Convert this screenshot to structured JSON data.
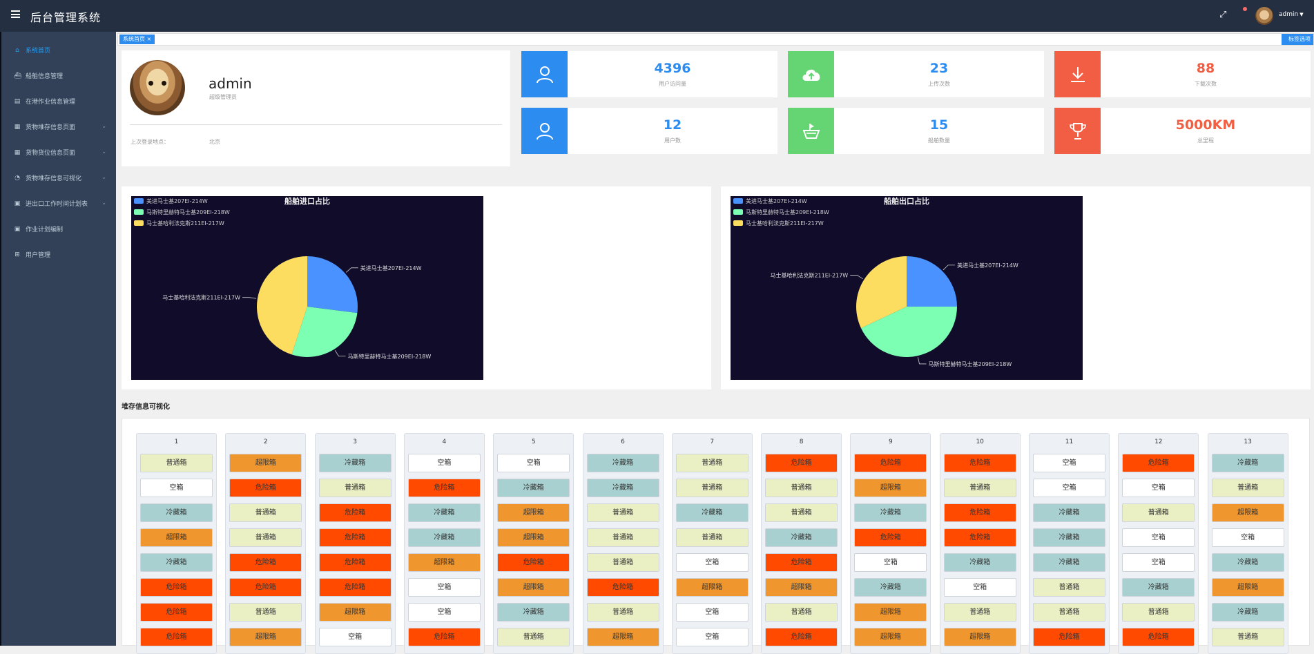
{
  "header": {
    "title": "后台管理系统",
    "user": "admin"
  },
  "sidebar": {
    "items": [
      {
        "label": "系统首页",
        "icon": "home-icon"
      },
      {
        "label": "船舶信息管理",
        "icon": "ship-icon"
      },
      {
        "label": "在港作业信息管理",
        "icon": "document-icon"
      },
      {
        "label": "货物堆存信息页面",
        "icon": "grid-icon"
      },
      {
        "label": "货物货位信息页面",
        "icon": "grid-icon"
      },
      {
        "label": "货物堆存信息可视化",
        "icon": "pie-icon"
      },
      {
        "label": "进出口工作时间计划表",
        "icon": "calendar-icon"
      },
      {
        "label": "作业计划编制",
        "icon": "calendar-icon"
      },
      {
        "label": "用户管理",
        "icon": "users-icon"
      }
    ]
  },
  "tags": {
    "active": "系统首页",
    "close": "×",
    "options": "标签选项"
  },
  "user_card": {
    "name": "admin",
    "role": "超级管理员",
    "location_label": "上次登录地点：",
    "location": "北京"
  },
  "stats": [
    {
      "value": "4396",
      "label": "用户访问量",
      "color": "#2d8cf0",
      "icon": "user-icon"
    },
    {
      "value": "23",
      "label": "上传次数",
      "color": "#64d572",
      "icon": "cloud-upload-icon"
    },
    {
      "value": "88",
      "label": "下载次数",
      "color": "#f25e43",
      "icon": "download-icon"
    },
    {
      "value": "12",
      "label": "用户数",
      "color": "#2d8cf0",
      "icon": "user-icon"
    },
    {
      "value": "15",
      "label": "船舶数量",
      "color": "#64d572",
      "icon": "ship-icon"
    },
    {
      "value": "5000KM",
      "label": "总里程",
      "color": "#f25e43",
      "icon": "trophy-icon"
    }
  ],
  "chart_data": [
    {
      "type": "pie",
      "title": "船舶进口占比",
      "labels": [
        "美进马士基207EI-214W",
        "马斯特里赫特马士基209EI-218W",
        "马士基哈利法克斯211EI-217W"
      ],
      "values": [
        27,
        28,
        45
      ],
      "colors": [
        "#4992ff",
        "#7cffb2",
        "#fddd60"
      ]
    },
    {
      "type": "pie",
      "title": "船舶出口占比",
      "labels": [
        "美进马士基207EI-214W",
        "马斯特里赫特马士基209EI-218W",
        "马士基哈利法克斯211EI-217W"
      ],
      "values": [
        25,
        43,
        32
      ],
      "colors": [
        "#4992ff",
        "#7cffb2",
        "#fddd60"
      ]
    }
  ],
  "stock": {
    "title": "堆存信息可视化",
    "types": {
      "普通箱": "#eaf0c4",
      "超限箱": "#f0962e",
      "冷藏箱": "#a8d0d0",
      "空箱": "#ffffff",
      "危险箱": "#ff4a00"
    },
    "columns": [
      {
        "num": "1",
        "boxes": [
          "普通箱",
          "空箱",
          "冷藏箱",
          "超限箱",
          "冷藏箱",
          "危险箱",
          "危险箱",
          "危险箱"
        ]
      },
      {
        "num": "2",
        "boxes": [
          "超限箱",
          "危险箱",
          "普通箱",
          "普通箱",
          "危险箱",
          "危险箱",
          "普通箱",
          "超限箱"
        ]
      },
      {
        "num": "3",
        "boxes": [
          "冷藏箱",
          "普通箱",
          "危险箱",
          "危险箱",
          "危险箱",
          "危险箱",
          "超限箱",
          "空箱"
        ]
      },
      {
        "num": "4",
        "boxes": [
          "空箱",
          "危险箱",
          "冷藏箱",
          "冷藏箱",
          "超限箱",
          "空箱",
          "空箱",
          "危险箱"
        ]
      },
      {
        "num": "5",
        "boxes": [
          "空箱",
          "冷藏箱",
          "超限箱",
          "超限箱",
          "危险箱",
          "超限箱",
          "冷藏箱",
          "普通箱"
        ]
      },
      {
        "num": "6",
        "boxes": [
          "冷藏箱",
          "冷藏箱",
          "普通箱",
          "普通箱",
          "普通箱",
          "危险箱",
          "普通箱",
          "超限箱"
        ]
      },
      {
        "num": "7",
        "boxes": [
          "普通箱",
          "普通箱",
          "冷藏箱",
          "普通箱",
          "空箱",
          "超限箱",
          "空箱",
          "空箱"
        ]
      },
      {
        "num": "8",
        "boxes": [
          "危险箱",
          "普通箱",
          "普通箱",
          "冷藏箱",
          "危险箱",
          "超限箱",
          "普通箱",
          "危险箱"
        ]
      },
      {
        "num": "9",
        "boxes": [
          "危险箱",
          "超限箱",
          "冷藏箱",
          "危险箱",
          "空箱",
          "冷藏箱",
          "超限箱",
          "超限箱"
        ]
      },
      {
        "num": "10",
        "boxes": [
          "危险箱",
          "普通箱",
          "危险箱",
          "危险箱",
          "冷藏箱",
          "空箱",
          "普通箱",
          "超限箱"
        ]
      },
      {
        "num": "11",
        "boxes": [
          "空箱",
          "空箱",
          "冷藏箱",
          "冷藏箱",
          "冷藏箱",
          "普通箱",
          "普通箱",
          "危险箱"
        ]
      },
      {
        "num": "12",
        "boxes": [
          "危险箱",
          "空箱",
          "普通箱",
          "空箱",
          "空箱",
          "冷藏箱",
          "普通箱",
          "危险箱"
        ]
      },
      {
        "num": "13",
        "boxes": [
          "冷藏箱",
          "普通箱",
          "超限箱",
          "空箱",
          "冷藏箱",
          "超限箱",
          "冷藏箱",
          "普通箱"
        ]
      }
    ]
  }
}
